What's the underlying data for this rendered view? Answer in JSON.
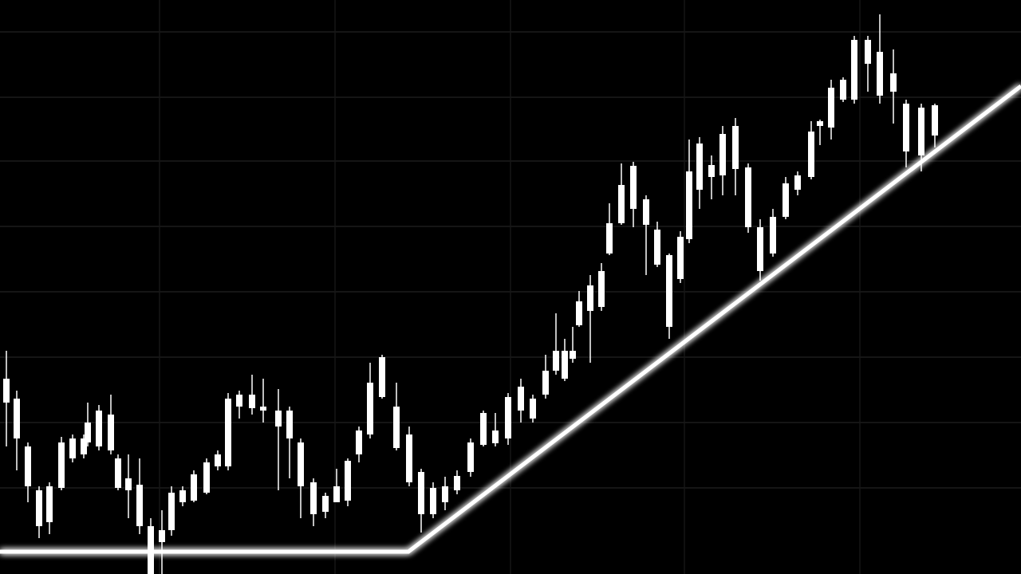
{
  "chart_data": {
    "type": "candlestick",
    "color": "#ffffff",
    "x": [
      8,
      21,
      35,
      49,
      62,
      77,
      91,
      105,
      110,
      124,
      139,
      148,
      161,
      175,
      189,
      203,
      215,
      229,
      243,
      259,
      273,
      286,
      300,
      316,
      330,
      349,
      363,
      377,
      393,
      408,
      422,
      436,
      450,
      464,
      479,
      497,
      513,
      528,
      543,
      558,
      573,
      590,
      606,
      621,
      637,
      653,
      668,
      684,
      697,
      708,
      718,
      726,
      740,
      754,
      764,
      779,
      794,
      810,
      824,
      839,
      853,
      864,
      877,
      892,
      906,
      922,
      938,
      953,
      969,
      985,
      1000,
      1017,
      1028,
      1042,
      1057,
      1071,
      1088,
      1103,
      1120,
      1136,
      1155,
      1172
    ],
    "high": [
      280,
      230,
      165,
      110,
      115,
      172,
      175,
      175,
      215,
      212,
      225,
      150,
      150,
      145,
      70,
      80,
      110,
      110,
      130,
      145,
      155,
      227,
      230,
      250,
      245,
      232,
      210,
      170,
      120,
      102,
      132,
      145,
      185,
      265,
      275,
      240,
      185,
      132,
      115,
      122,
      130,
      170,
      205,
      202,
      227,
      245,
      225,
      275,
      327,
      295,
      310,
      355,
      375,
      390,
      465,
      515,
      517,
      475,
      442,
      402,
      430,
      545,
      548,
      525,
      562,
      572,
      515,
      445,
      458,
      498,
      505,
      568,
      570,
      620,
      623,
      675,
      675,
      702,
      658,
      595,
      590,
      590
    ],
    "low": [
      160,
      130,
      90,
      45,
      50,
      105,
      140,
      145,
      160,
      155,
      150,
      105,
      70,
      50,
      0,
      0,
      48,
      85,
      90,
      100,
      130,
      130,
      195,
      200,
      190,
      105,
      120,
      70,
      60,
      70,
      90,
      85,
      140,
      170,
      220,
      155,
      110,
      52,
      70,
      80,
      100,
      122,
      160,
      160,
      162,
      190,
      190,
      220,
      250,
      242,
      265,
      310,
      265,
      330,
      400,
      438,
      435,
      375,
      385,
      295,
      365,
      415,
      458,
      470,
      475,
      475,
      428,
      368,
      398,
      445,
      475,
      495,
      538,
      545,
      592,
      590,
      605,
      590,
      565,
      510,
      505,
      535
    ],
    "open": [
      215,
      170,
      110,
      60,
      65,
      108,
      145,
      150,
      165,
      160,
      155,
      108,
      105,
      60,
      0,
      40,
      55,
      90,
      92,
      102,
      135,
      135,
      210,
      208,
      205,
      185,
      170,
      110,
      75,
      78,
      90,
      92,
      150,
      175,
      222,
      158,
      115,
      75,
      75,
      90,
      105,
      128,
      162,
      164,
      170,
      205,
      195,
      225,
      255,
      245,
      270,
      312,
      330,
      335,
      402,
      440,
      458,
      438,
      388,
      310,
      370,
      420,
      482,
      498,
      500,
      508,
      435,
      380,
      402,
      448,
      482,
      498,
      562,
      560,
      595,
      595,
      640,
      600,
      605,
      530,
      525,
      550
    ],
    "close": [
      245,
      220,
      160,
      105,
      110,
      165,
      170,
      170,
      190,
      205,
      200,
      145,
      120,
      112,
      60,
      55,
      102,
      105,
      125,
      140,
      150,
      220,
      225,
      225,
      210,
      205,
      205,
      165,
      115,
      98,
      110,
      142,
      180,
      240,
      272,
      210,
      175,
      128,
      108,
      110,
      123,
      165,
      202,
      180,
      222,
      235,
      220,
      255,
      280,
      280,
      280,
      342,
      362,
      380,
      440,
      488,
      512,
      470,
      432,
      400,
      423,
      505,
      540,
      513,
      552,
      562,
      510,
      435,
      448,
      490,
      500,
      555,
      568,
      610,
      620,
      670,
      670,
      655,
      628,
      590,
      585,
      588
    ],
    "xlim": [
      0,
      1280
    ],
    "ylim": [
      0,
      720
    ],
    "xticks": [
      200,
      420,
      640,
      858,
      1078
    ],
    "yticks": [
      108,
      190,
      272,
      354,
      436,
      518,
      598,
      680
    ],
    "grid": true,
    "trendline": {
      "x": [
        0,
        512,
        1280
      ],
      "values": [
        28,
        28,
        612
      ],
      "color": "#ffffff"
    }
  }
}
